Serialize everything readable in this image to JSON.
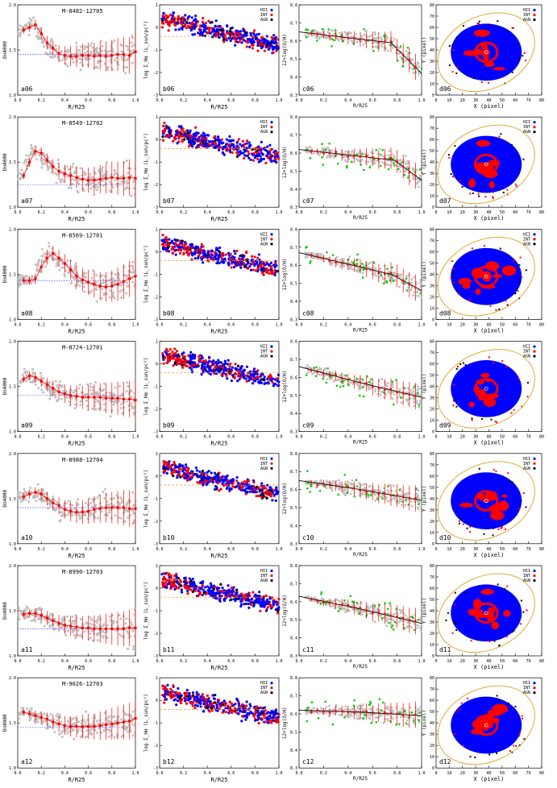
{
  "figure": {
    "columns": {
      "a": {
        "ylabel": "Dn4000",
        "xlabel": "R/R25",
        "ylim": [
          1.0,
          2.0
        ],
        "xlim": [
          0,
          1.0
        ],
        "yticks": [
          "1.0",
          "1.5",
          "2.0"
        ],
        "xticks": [
          "0.0",
          "0.2",
          "0.4",
          "0.6",
          "0.8",
          "1.0"
        ]
      },
      "b": {
        "ylabel": "log Σ_Hα (L_sun/pc²)",
        "xlabel": "R/R25",
        "ylim": [
          -3,
          1
        ],
        "xlim": [
          0,
          1.0
        ],
        "yticks": [
          "-3",
          "-2",
          "-1",
          "0",
          "1"
        ],
        "xticks": [
          "0.0",
          "0.2",
          "0.4",
          "0.6",
          "0.8",
          "1.0"
        ],
        "legend": [
          "HII",
          "INT",
          "AGN"
        ]
      },
      "c": {
        "ylabel": "12+log(O/H)",
        "xlabel": "R/R25",
        "ylim": [
          8.3,
          8.8
        ],
        "xlim": [
          0,
          1.0
        ],
        "yticks": [
          "8.3",
          "8.4",
          "8.5",
          "8.6",
          "8.7",
          "8.8"
        ],
        "xticks": [
          "0.0",
          "0.2",
          "0.4",
          "0.6",
          "0.8",
          "1.0"
        ]
      },
      "d": {
        "ylabel": "Y (pixel)",
        "xlabel": "X (pixel)",
        "ylim": [
          0,
          80
        ],
        "xlim": [
          0,
          80
        ],
        "yticks": [
          "0",
          "10",
          "20",
          "30",
          "40",
          "50",
          "60",
          "70",
          "80"
        ],
        "xticks": [
          "0",
          "10",
          "20",
          "30",
          "40",
          "50",
          "60",
          "70",
          "80"
        ],
        "legend": [
          "HII",
          "INT",
          "AGN"
        ]
      }
    },
    "colors": {
      "hii": "#0000ff",
      "int": "#ff0000",
      "agn": "#000000",
      "bins": "#ff0000",
      "gray": "#c0c0c0",
      "green": "#00cc00",
      "ellipse": "#e0a020",
      "ref": "#4444ff",
      "fit": "#000000"
    }
  },
  "chart_data": [
    {
      "type": "line",
      "panel": "a06",
      "galaxy": "M-8482-12705",
      "x": [
        0.05,
        0.1,
        0.15,
        0.2,
        0.25,
        0.3,
        0.35,
        0.4,
        0.45,
        0.5,
        0.55,
        0.6,
        0.65,
        0.7,
        0.75,
        0.8,
        0.85,
        0.9,
        0.95,
        1.0
      ],
      "y": [
        1.72,
        1.75,
        1.78,
        1.68,
        1.58,
        1.52,
        1.46,
        1.44,
        1.43,
        1.43,
        1.44,
        1.44,
        1.43,
        1.44,
        1.43,
        1.44,
        1.45,
        1.45,
        1.44,
        1.48
      ],
      "ref": 1.45
    },
    {
      "type": "line",
      "panel": "a07",
      "galaxy": "M-8549-12702",
      "x": [
        0.05,
        0.1,
        0.15,
        0.2,
        0.25,
        0.3,
        0.35,
        0.4,
        0.45,
        0.5,
        0.55,
        0.6,
        0.65,
        0.7,
        0.75,
        0.8,
        0.85,
        0.9,
        0.95,
        1.0
      ],
      "y": [
        1.35,
        1.5,
        1.62,
        1.6,
        1.52,
        1.45,
        1.4,
        1.37,
        1.35,
        1.33,
        1.31,
        1.3,
        1.3,
        1.31,
        1.32,
        1.33,
        1.32,
        1.32,
        1.33,
        1.32
      ],
      "ref": 1.25
    },
    {
      "type": "line",
      "panel": "a08",
      "galaxy": "M-8569-12701",
      "x": [
        0.05,
        0.1,
        0.15,
        0.2,
        0.25,
        0.3,
        0.35,
        0.4,
        0.45,
        0.5,
        0.55,
        0.6,
        0.65,
        0.7,
        0.75,
        0.8,
        0.85,
        0.9,
        0.95,
        1.0
      ],
      "y": [
        1.43,
        1.43,
        1.45,
        1.58,
        1.68,
        1.73,
        1.68,
        1.62,
        1.55,
        1.48,
        1.44,
        1.41,
        1.39,
        1.37,
        1.36,
        1.37,
        1.39,
        1.42,
        1.45,
        1.48
      ],
      "ref": 1.43
    },
    {
      "type": "line",
      "panel": "a09",
      "galaxy": "M-8724-12701",
      "x": [
        0.05,
        0.1,
        0.15,
        0.2,
        0.25,
        0.3,
        0.35,
        0.4,
        0.45,
        0.5,
        0.55,
        0.6,
        0.65,
        0.7,
        0.75,
        0.8,
        0.85,
        0.9,
        0.95,
        1.0
      ],
      "y": [
        1.58,
        1.62,
        1.6,
        1.56,
        1.52,
        1.48,
        1.44,
        1.42,
        1.4,
        1.39,
        1.38,
        1.38,
        1.38,
        1.38,
        1.37,
        1.37,
        1.37,
        1.36,
        1.36,
        1.35
      ],
      "ref": 1.4
    },
    {
      "type": "line",
      "panel": "a10",
      "galaxy": "M-8988-12704",
      "x": [
        0.05,
        0.1,
        0.15,
        0.2,
        0.25,
        0.3,
        0.35,
        0.4,
        0.45,
        0.5,
        0.55,
        0.6,
        0.65,
        0.7,
        0.75,
        0.8,
        0.85,
        0.9,
        0.95,
        1.0
      ],
      "y": [
        1.52,
        1.55,
        1.57,
        1.55,
        1.5,
        1.45,
        1.42,
        1.38,
        1.36,
        1.35,
        1.35,
        1.36,
        1.38,
        1.39,
        1.4,
        1.4,
        1.4,
        1.4,
        1.39,
        1.39
      ],
      "ref": 1.4
    },
    {
      "type": "line",
      "panel": "a11",
      "galaxy": "M-8990-12703",
      "x": [
        0.05,
        0.1,
        0.15,
        0.2,
        0.25,
        0.3,
        0.35,
        0.4,
        0.45,
        0.5,
        0.55,
        0.6,
        0.65,
        0.7,
        0.75,
        0.8,
        0.85,
        0.9,
        0.95,
        1.0
      ],
      "y": [
        1.46,
        1.47,
        1.47,
        1.45,
        1.42,
        1.39,
        1.36,
        1.34,
        1.33,
        1.32,
        1.31,
        1.31,
        1.3,
        1.3,
        1.3,
        1.3,
        1.3,
        1.3,
        1.31,
        1.31
      ],
      "ref": 1.3
    },
    {
      "type": "line",
      "panel": "a12",
      "galaxy": "M-9026-12703",
      "x": [
        0.05,
        0.1,
        0.15,
        0.2,
        0.25,
        0.3,
        0.35,
        0.4,
        0.45,
        0.5,
        0.55,
        0.6,
        0.65,
        0.7,
        0.75,
        0.8,
        0.85,
        0.9,
        0.95,
        1.0
      ],
      "y": [
        1.62,
        1.6,
        1.58,
        1.56,
        1.54,
        1.51,
        1.49,
        1.47,
        1.46,
        1.46,
        1.46,
        1.46,
        1.46,
        1.47,
        1.48,
        1.49,
        1.5,
        1.51,
        1.52,
        1.55
      ],
      "ref": 1.45
    },
    {
      "type": "line",
      "panel": "c06",
      "fit": {
        "break": 0.75,
        "y0": 8.65,
        "yb": 8.59,
        "y1": 8.42
      }
    },
    {
      "type": "line",
      "panel": "c07",
      "fit": {
        "break": 0.78,
        "y0": 8.62,
        "yb": 8.56,
        "y1": 8.45
      }
    },
    {
      "type": "line",
      "panel": "c08",
      "fit": {
        "break": 0.75,
        "y0": 8.67,
        "yb": 8.55,
        "y1": 8.46
      }
    },
    {
      "type": "line",
      "panel": "c09",
      "fit": {
        "break": 0.5,
        "y0": 8.66,
        "yb": 8.57,
        "y1": 8.49
      }
    },
    {
      "type": "line",
      "panel": "c10",
      "fit": {
        "break": 0.5,
        "y0": 8.65,
        "yb": 8.6,
        "y1": 8.54
      }
    },
    {
      "type": "line",
      "panel": "c11",
      "fit": {
        "break": 0.5,
        "y0": 8.63,
        "yb": 8.56,
        "y1": 8.48
      }
    },
    {
      "type": "line",
      "panel": "c12",
      "fit": {
        "break": 0.5,
        "y0": 8.62,
        "yb": 8.61,
        "y1": 8.59
      }
    }
  ]
}
